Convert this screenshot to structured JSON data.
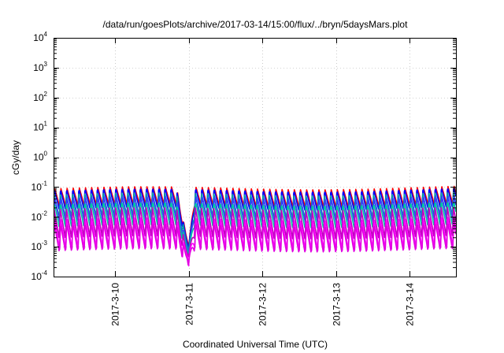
{
  "chart_data": {
    "type": "line",
    "title": "/data/run/goesPlots/archive/2017-03-14/15:00/flux/../bryn/5daysMars.plot",
    "xlabel": "Coordinated Universal Time (UTC)",
    "ylabel": "cGy/day",
    "yscale": "log",
    "ylim": [
      0.0001,
      10000
    ],
    "xlim": [
      "2017-03-09 04:00",
      "2017-03-14 15:00"
    ],
    "grid": true,
    "legend": "none",
    "y_tick_labels": [
      {
        "base": "10",
        "exp": "-4",
        "value": 0.0001
      },
      {
        "base": "10",
        "exp": "-3",
        "value": 0.001
      },
      {
        "base": "10",
        "exp": "-2",
        "value": 0.01
      },
      {
        "base": "10",
        "exp": "-1",
        "value": 0.1
      },
      {
        "base": "10",
        "exp": "0",
        "value": 1
      },
      {
        "base": "10",
        "exp": "1",
        "value": 10
      },
      {
        "base": "10",
        "exp": "2",
        "value": 100
      },
      {
        "base": "10",
        "exp": "3",
        "value": 1000
      },
      {
        "base": "10",
        "exp": "4",
        "value": 10000
      }
    ],
    "x_tick_labels": [
      "2017-3-10",
      "2017-3-11",
      "2017-3-12",
      "2017-3-13",
      "2017-3-14"
    ],
    "x_tick_dates": [
      "2017-03-10",
      "2017-03-11",
      "2017-03-12",
      "2017-03-13",
      "2017-03-14"
    ],
    "series_style": "repeating sawtooth oscillation, about 12 cycles per day",
    "series": [
      {
        "color": "#ff0000",
        "peak": 0.095,
        "trough": 0.022
      },
      {
        "color": "#0000ff",
        "peak": 0.085,
        "trough": 0.016
      },
      {
        "color": "#00a0a0",
        "peak": 0.055,
        "trough": 0.009
      },
      {
        "color": "#3a3aff",
        "peak": 0.045,
        "trough": 0.0065
      },
      {
        "color": "#00c8a0",
        "peak": 0.03,
        "trough": 0.004
      },
      {
        "color": "#c000c0",
        "peak": 0.018,
        "trough": 0.0018
      },
      {
        "color": "#ff00ff",
        "peak": 0.009,
        "trough": 0.0008
      },
      {
        "color": "#e000e0",
        "peak": 0.006,
        "trough": 0.0006
      }
    ],
    "event": {
      "date": "2017-03-11 00:00",
      "min_value": 0.00012
    }
  }
}
